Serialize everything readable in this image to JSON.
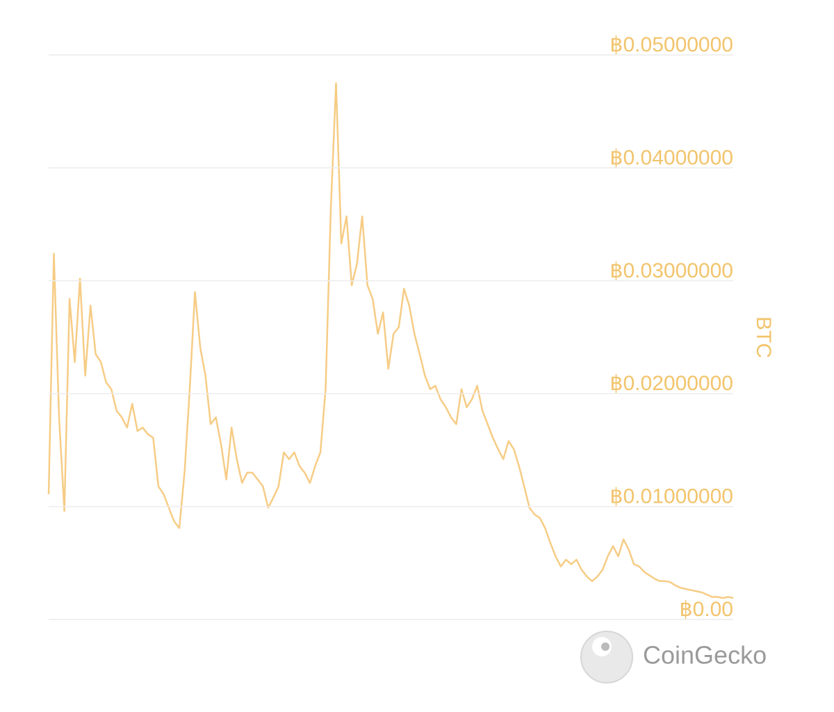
{
  "chart_data": {
    "type": "line",
    "ylabel": "BTC",
    "watermark": "CoinGecko",
    "color": "#f6cc85",
    "grid": true,
    "ylim": [
      0,
      0.05
    ],
    "yticks": [
      {
        "value": 0,
        "label": "฿0.00"
      },
      {
        "value": 0.01,
        "label": "฿0.01000000"
      },
      {
        "value": 0.02,
        "label": "฿0.02000000"
      },
      {
        "value": 0.03,
        "label": "฿0.03000000"
      },
      {
        "value": 0.04,
        "label": "฿0.04000000"
      },
      {
        "value": 0.05,
        "label": "฿0.05000000"
      }
    ],
    "values": [
      0.0111,
      0.0324,
      0.0179,
      0.0096,
      0.0284,
      0.0228,
      0.0302,
      0.0216,
      0.0278,
      0.0235,
      0.0228,
      0.021,
      0.0204,
      0.0185,
      0.0179,
      0.017,
      0.0191,
      0.0167,
      0.017,
      0.0164,
      0.0161,
      0.0118,
      0.0111,
      0.0099,
      0.0087,
      0.0081,
      0.013,
      0.0204,
      0.029,
      0.0241,
      0.0216,
      0.0173,
      0.0179,
      0.0155,
      0.0124,
      0.017,
      0.0142,
      0.0121,
      0.013,
      0.013,
      0.0124,
      0.0118,
      0.0099,
      0.0108,
      0.0118,
      0.0148,
      0.0142,
      0.0148,
      0.0136,
      0.013,
      0.0121,
      0.0136,
      0.0148,
      0.0204,
      0.0364,
      0.0475,
      0.0333,
      0.0357,
      0.0296,
      0.0315,
      0.0357,
      0.0296,
      0.0284,
      0.0253,
      0.0272,
      0.0222,
      0.0253,
      0.0259,
      0.0293,
      0.0278,
      0.0253,
      0.0235,
      0.0216,
      0.0204,
      0.0207,
      0.0195,
      0.0188,
      0.0179,
      0.0173,
      0.0204,
      0.0188,
      0.0195,
      0.0207,
      0.0185,
      0.0173,
      0.0161,
      0.0151,
      0.0142,
      0.0158,
      0.0151,
      0.0136,
      0.0118,
      0.0099,
      0.0093,
      0.009,
      0.0081,
      0.0068,
      0.0056,
      0.0047,
      0.0053,
      0.0049,
      0.0053,
      0.0044,
      0.0038,
      0.0034,
      0.0038,
      0.0044,
      0.0056,
      0.0065,
      0.0056,
      0.0071,
      0.0062,
      0.0049,
      0.0047,
      0.0042,
      0.0039,
      0.0036,
      0.0034,
      0.0034,
      0.0033,
      0.003,
      0.0028,
      0.0027,
      0.0026,
      0.0025,
      0.0024,
      0.0022,
      0.002,
      0.002,
      0.0019,
      0.002,
      0.0019
    ]
  }
}
